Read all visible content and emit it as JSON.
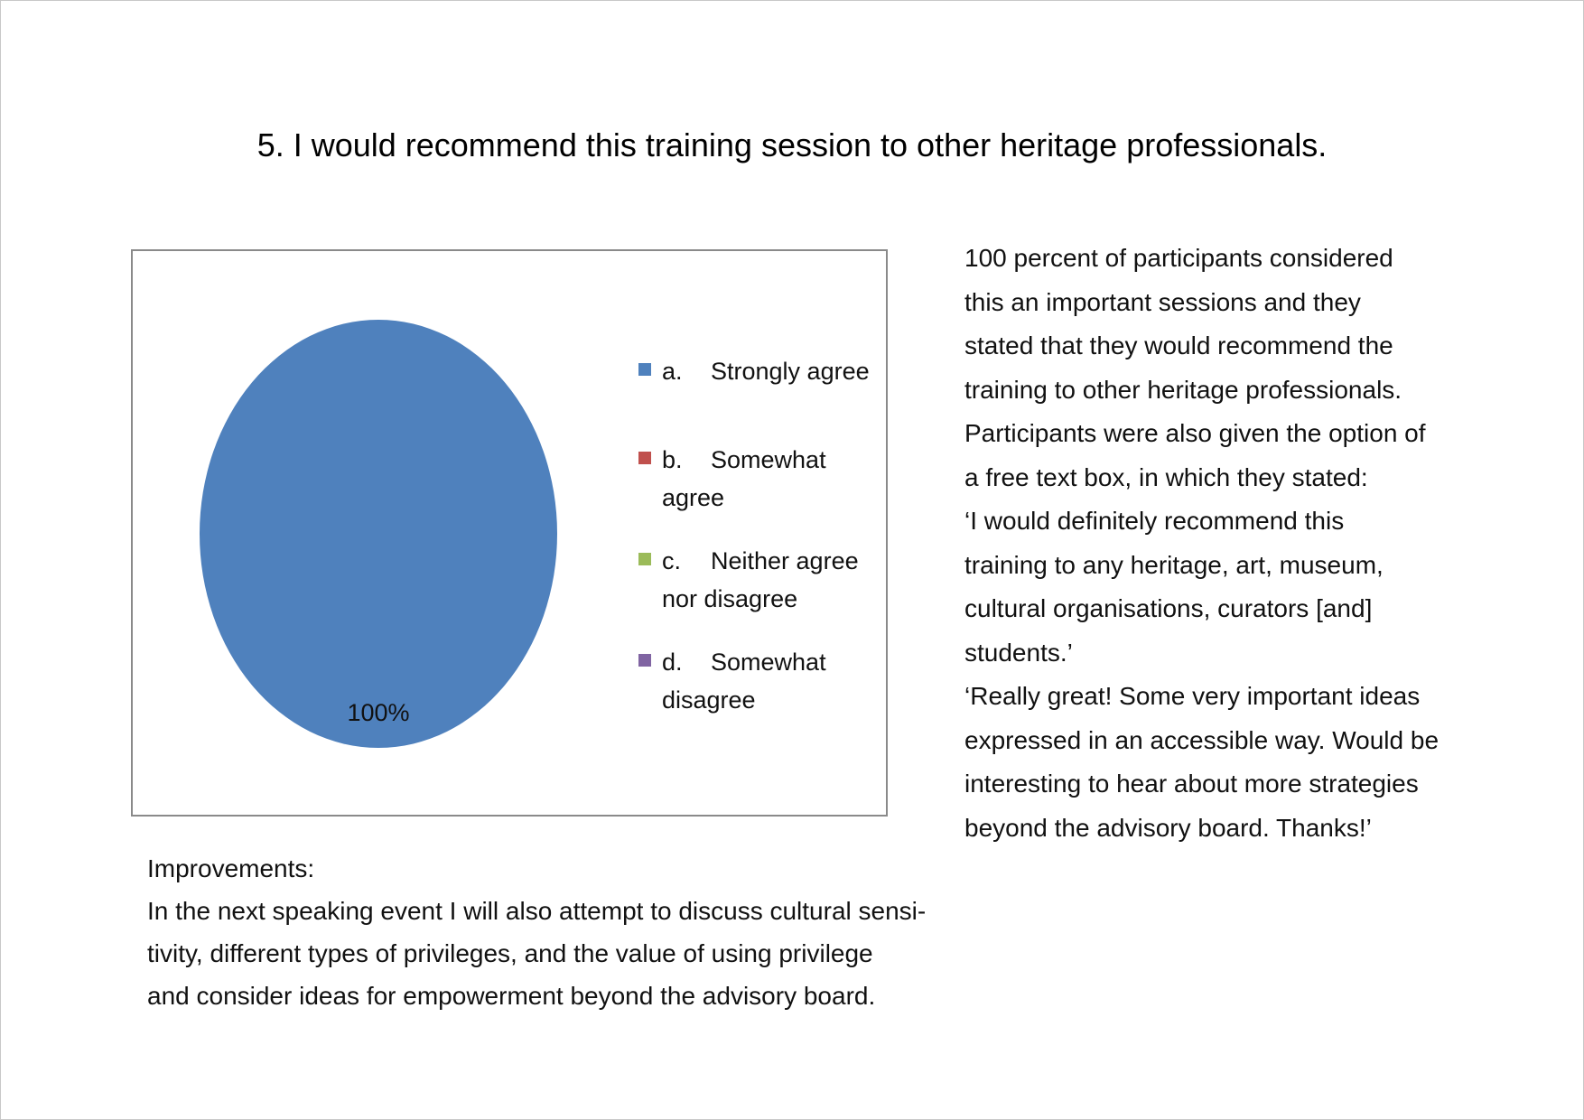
{
  "title": "5. I would recommend this training session to other heritage professionals.",
  "chart_data": {
    "type": "pie",
    "categories": [
      "a.    Strongly agree",
      "b.    Somewhat agree",
      "c.    Neither agree nor disagree",
      "d.    Somewhat disagree"
    ],
    "values": [
      100,
      0,
      0,
      0
    ],
    "data_labels": [
      "100%"
    ],
    "colors": [
      "#4f81bd",
      "#c0504d",
      "#9bbb59",
      "#8064a2"
    ],
    "legend_position": "right"
  },
  "legend": {
    "items": [
      {
        "letter": "a.",
        "text": "Strongly agree",
        "color": "#4f81bd"
      },
      {
        "letter": "b.",
        "text": "Somewhat agree",
        "color": "#c0504d"
      },
      {
        "letter": "c.",
        "text": "Neither agree nor disagree",
        "color": "#9bbb59"
      },
      {
        "letter": "d.",
        "text": "Somewhat disagree",
        "color": "#8064a2"
      }
    ]
  },
  "summary": {
    "lines": [
      "100 percent of participants considered",
      "this an important sessions and they",
      "stated that they would recommend the",
      "training to other heritage professionals.",
      "Participants were also given the option of",
      "a free text box, in which they stated:",
      "‘I would definitely recommend this",
      "training to any heritage, art, museum,",
      "cultural organisations, curators [and]",
      "students.’",
      "‘Really great! Some very important ideas",
      "expressed in an accessible way. Would be",
      "interesting to hear about more strategies",
      "beyond the advisory board. Thanks!’"
    ]
  },
  "improvements": {
    "heading": "Improvements:",
    "lines": [
      "In the next speaking event I will also attempt to discuss cultural sensi-",
      "tivity, different types of privileges, and the value of using privilege",
      "and consider ideas for empowerment beyond the advisory board."
    ]
  }
}
